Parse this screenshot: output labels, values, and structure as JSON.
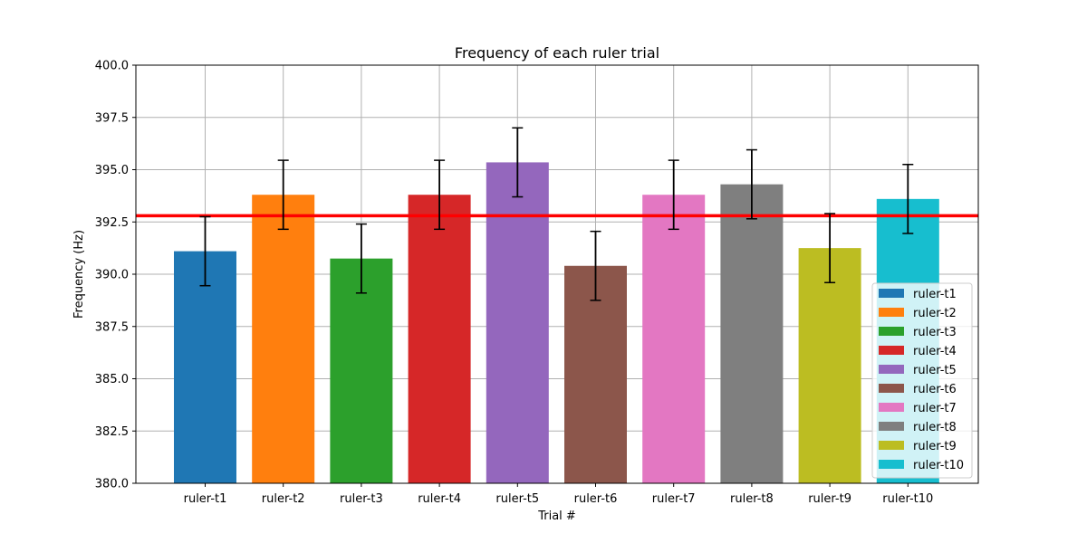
{
  "chart_data": {
    "type": "bar",
    "title": "Frequency of each ruler trial",
    "xlabel": "Trial #",
    "ylabel": "Frequency (Hz)",
    "ylim": [
      380.0,
      400.0
    ],
    "yticks": [
      "380.0",
      "382.5",
      "385.0",
      "387.5",
      "390.0",
      "392.5",
      "395.0",
      "397.5",
      "400.0"
    ],
    "grid": true,
    "legend_position": "lower-right",
    "categories": [
      "ruler-t1",
      "ruler-t2",
      "ruler-t3",
      "ruler-t4",
      "ruler-t5",
      "ruler-t6",
      "ruler-t7",
      "ruler-t8",
      "ruler-t9",
      "ruler-t10"
    ],
    "values": [
      391.1,
      393.8,
      390.75,
      393.8,
      395.35,
      390.4,
      393.8,
      394.3,
      391.25,
      393.6
    ],
    "errors": [
      1.65,
      1.65,
      1.65,
      1.65,
      1.65,
      1.65,
      1.65,
      1.65,
      1.65,
      1.65
    ],
    "colors": [
      "#1f77b4",
      "#ff7f0e",
      "#2ca02c",
      "#d62728",
      "#9467bd",
      "#8c564b",
      "#e377c2",
      "#7f7f7f",
      "#bcbd22",
      "#17becf"
    ],
    "reference_line": {
      "value": 392.8,
      "color": "#ff0000"
    }
  }
}
